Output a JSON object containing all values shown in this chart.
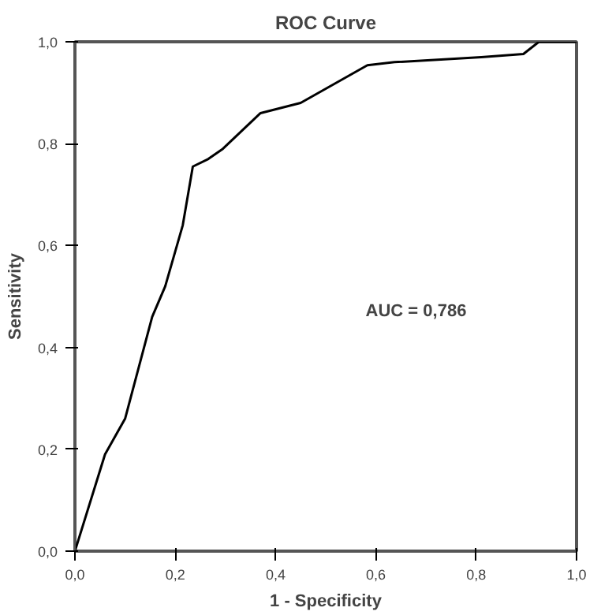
{
  "chart_data": {
    "type": "line",
    "title": "ROC Curve",
    "xlabel": "1 - Specificity",
    "ylabel": "Sensitivity",
    "x": [
      0,
      0.06,
      0.1,
      0.154,
      0.18,
      0.215,
      0.235,
      0.266,
      0.295,
      0.37,
      0.45,
      0.583,
      0.637,
      0.81,
      0.894,
      0.925,
      1.0
    ],
    "series": [
      {
        "color": "#000000",
        "values": [
          0,
          0.19,
          0.26,
          0.46,
          0.52,
          0.64,
          0.755,
          0.77,
          0.79,
          0.86,
          0.88,
          0.954,
          0.96,
          0.97,
          0.976,
          1.0,
          1.0
        ]
      }
    ],
    "xlim": [
      0,
      1
    ],
    "ylim": [
      0,
      1
    ],
    "xticks": [
      {
        "value": 0,
        "label": "0,0"
      },
      {
        "value": 0.2,
        "label": "0,2"
      },
      {
        "value": 0.4,
        "label": "0,4"
      },
      {
        "value": 0.6,
        "label": "0,6"
      },
      {
        "value": 0.8,
        "label": "0,8"
      },
      {
        "value": 1,
        "label": "1,0"
      }
    ],
    "yticks": [
      {
        "value": 0,
        "label": "0,0"
      },
      {
        "value": 0.2,
        "label": "0,2"
      },
      {
        "value": 0.4,
        "label": "0,4"
      },
      {
        "value": 0.6,
        "label": "0,6"
      },
      {
        "value": 0.8,
        "label": "0,8"
      },
      {
        "value": 1,
        "label": "1,0"
      }
    ],
    "annotations": [
      "AUC = 0,786"
    ],
    "grid": false,
    "marker": "none",
    "line_style": "solid"
  }
}
